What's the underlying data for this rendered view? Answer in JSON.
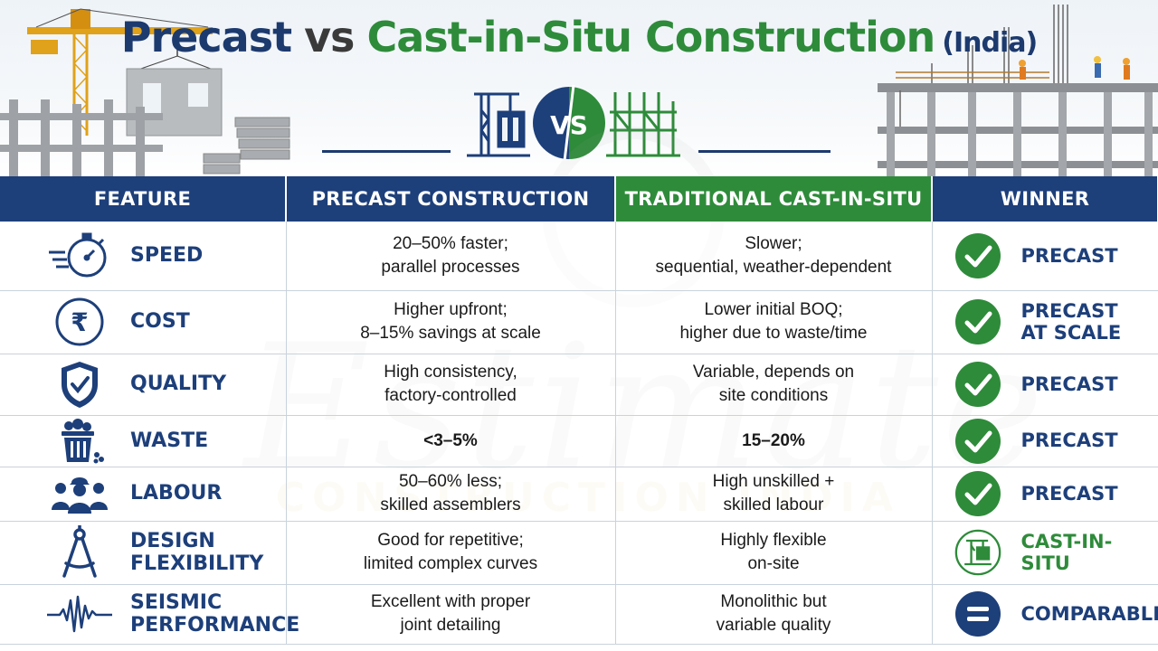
{
  "title": {
    "precast": "Precast",
    "vs": "vs",
    "cast_in_situ": "Cast-in-Situ Construction",
    "india": "(India)"
  },
  "emblem": {
    "vs": "VS"
  },
  "headers": {
    "feature": "FEATURE",
    "precast": "PRECAST CONSTRUCTION",
    "cast_in_situ": "TRADITIONAL CAST-IN-SITU",
    "winner": "WINNER"
  },
  "watermark": {
    "main": "Estimate",
    "sub": "CONSTRUCTION INDIA"
  },
  "rows": [
    {
      "feature": "SPEED",
      "icon": "stopwatch-icon",
      "precast": "20–50% faster;\nparallel processes",
      "cast_in_situ": "Slower;\nsequential, weather-dependent",
      "winner": "PRECAST",
      "winner_icon": "check-icon"
    },
    {
      "feature": "COST",
      "icon": "rupee-icon",
      "precast": "Higher upfront;\n8–15% savings at scale",
      "cast_in_situ": "Lower initial BOQ;\nhigher due to waste/time",
      "winner": "PRECAST\nAT SCALE",
      "winner_icon": "check-icon"
    },
    {
      "feature": "QUALITY",
      "icon": "shield-check-icon",
      "precast": "High consistency,\nfactory-controlled",
      "cast_in_situ": "Variable, depends on\nsite conditions",
      "winner": "PRECAST",
      "winner_icon": "check-icon"
    },
    {
      "feature": "WASTE",
      "icon": "waste-bin-icon",
      "precast": "<3–5%",
      "cast_in_situ": "15–20%",
      "winner": "PRECAST",
      "winner_icon": "check-icon"
    },
    {
      "feature": "LABOUR",
      "icon": "workers-icon",
      "precast": "50–60% less;\nskilled assemblers",
      "cast_in_situ": "High unskilled +\nskilled labour",
      "winner": "PRECAST",
      "winner_icon": "check-icon"
    },
    {
      "feature": "DESIGN\nFLEXIBILITY",
      "icon": "compass-icon",
      "precast": "Good for repetitive;\nlimited complex curves",
      "cast_in_situ": "Highly flexible\non-site",
      "winner": "CAST-IN-SITU",
      "winner_icon": "site-structure-icon"
    },
    {
      "feature": "SEISMIC\nPERFORMANCE",
      "icon": "seismograph-icon",
      "precast": "Excellent with proper\njoint detailing",
      "cast_in_situ": "Monolithic but\nvariable quality",
      "winner": "COMPARABLE",
      "winner_icon": "equals-icon"
    }
  ],
  "colors": {
    "navy": "#1d3f7a",
    "green": "#2e8b3a",
    "check_green": "#2e8b3a"
  }
}
